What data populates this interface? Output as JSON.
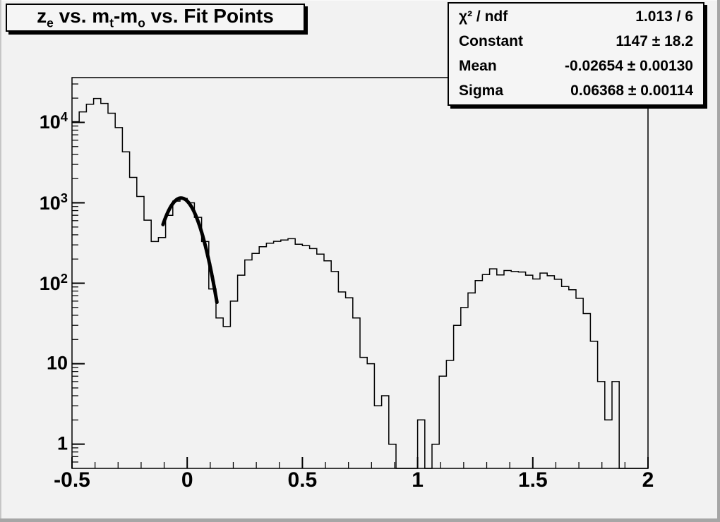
{
  "title_box": {
    "text": "z_e vs. m_t-m_o vs. Fit Points",
    "parts": [
      {
        "text": "z",
        "sub": "e"
      },
      {
        "text": " vs. m",
        "sub": "t"
      },
      {
        "text": "-m",
        "sub": "o"
      },
      {
        "text": " vs. Fit Points",
        "sub": ""
      }
    ]
  },
  "stats_box": {
    "rows": [
      {
        "label": "χ² / ndf",
        "value": "1.013 / 6"
      },
      {
        "label": "Constant",
        "value": "1147 ± 18.2"
      },
      {
        "label": "Mean",
        "value": "-0.02654 ± 0.00130"
      },
      {
        "label": "Sigma",
        "value": "0.06368 ± 0.00114"
      }
    ]
  },
  "chart_data": {
    "type": "bar",
    "subtype": "step-histogram-log-y",
    "title": "z_e vs. m_t-m_o vs. Fit Points",
    "xlabel": "",
    "ylabel": "",
    "grid": false,
    "legend": "none",
    "x_axis": {
      "min": -0.5,
      "max": 2.0,
      "minor_step": 0.1,
      "ticks": [
        {
          "v": -0.5,
          "label": "-0.5"
        },
        {
          "v": 0,
          "label": "0"
        },
        {
          "v": 0.5,
          "label": "0.5"
        },
        {
          "v": 1,
          "label": "1"
        },
        {
          "v": 1.5,
          "label": "1.5"
        },
        {
          "v": 2,
          "label": "2"
        }
      ]
    },
    "y_axis": {
      "scale": "log",
      "min": 0.5,
      "max": 36000,
      "major_ticks": [
        1,
        10,
        100,
        1000,
        10000
      ],
      "tick_labels": [
        {
          "v": 1,
          "base": "1",
          "exp": ""
        },
        {
          "v": 10,
          "base": "10",
          "exp": ""
        },
        {
          "v": 100,
          "base": "10",
          "exp": "2"
        },
        {
          "v": 1000,
          "base": "10",
          "exp": "3"
        },
        {
          "v": 10000,
          "base": "10",
          "exp": "4"
        }
      ]
    },
    "first_edge": -0.5,
    "bin_width": 0.03125,
    "bins": [
      10200,
      13500,
      16800,
      19800,
      17200,
      13000,
      8600,
      4300,
      2070,
      1200,
      608,
      330,
      370,
      700,
      1050,
      1130,
      1000,
      660,
      330,
      85,
      37,
      29,
      60,
      126,
      195,
      235,
      285,
      315,
      332,
      345,
      358,
      305,
      293,
      270,
      230,
      190,
      140,
      78,
      66,
      37,
      12,
      10,
      3,
      4,
      1,
      0,
      0,
      0,
      2,
      0,
      1,
      7,
      11,
      30,
      50,
      76,
      108,
      128,
      151,
      127,
      144,
      140,
      138,
      126,
      113,
      134,
      124,
      112,
      91,
      83,
      65,
      42,
      19,
      6,
      2,
      6,
      0,
      0,
      0,
      0
    ],
    "fit": {
      "shape": "gaussian",
      "constant": 1147,
      "constant_err": 18.2,
      "mean": -0.02654,
      "mean_err": 0.0013,
      "sigma": 0.06368,
      "sigma_err": 0.00114,
      "chi2": 1.013,
      "ndf": 6,
      "draw_range": [
        -0.105,
        0.129
      ],
      "line_width": 5
    },
    "colors": {
      "background": "#f2f2f2",
      "box_fill": "#f5f5f5",
      "line": "#000000",
      "bevel": "#a6a6a6"
    }
  }
}
